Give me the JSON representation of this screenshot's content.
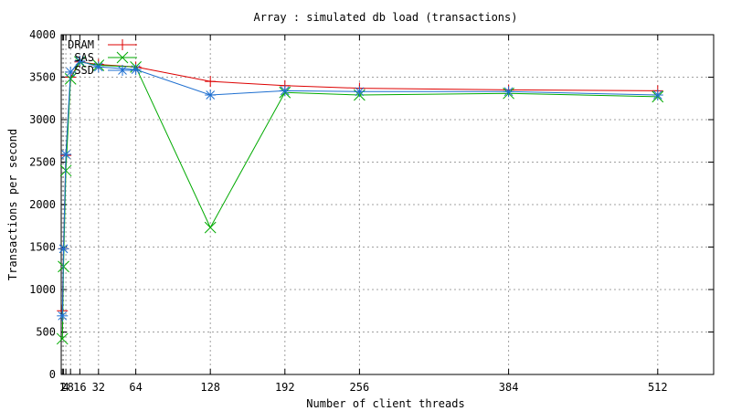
{
  "chart_data": {
    "type": "line",
    "title": "Array : simulated db load (transactions)",
    "xlabel": "Number of client threads",
    "ylabel": "Transactions per second",
    "xlim": [
      0,
      560
    ],
    "ylim": [
      0,
      4000
    ],
    "xticks": [
      1,
      2,
      4,
      8,
      16,
      32,
      64,
      128,
      192,
      256,
      384,
      512
    ],
    "xtick_labels": [
      "1",
      "2",
      "4",
      "8",
      "16",
      "32",
      "64",
      "128",
      "192",
      "256",
      "384",
      "512"
    ],
    "yticks": [
      0,
      500,
      1000,
      1500,
      2000,
      2500,
      3000,
      3500,
      4000
    ],
    "grid": true,
    "legend": "top-left",
    "series": [
      {
        "name": "DRAM",
        "color": "#dd0000",
        "marker": "plus",
        "x": [
          1,
          2,
          4,
          8,
          16,
          32,
          64,
          128,
          192,
          256,
          384,
          512
        ],
        "y": [
          750,
          1480,
          2580,
          3500,
          3680,
          3650,
          3620,
          3450,
          3400,
          3370,
          3350,
          3340
        ]
      },
      {
        "name": "SAS",
        "color": "#00aa00",
        "marker": "x",
        "x": [
          1,
          2,
          4,
          8,
          16,
          32,
          64,
          128,
          192,
          256,
          384,
          512
        ],
        "y": [
          420,
          1270,
          2400,
          3480,
          3680,
          3640,
          3620,
          1730,
          3320,
          3290,
          3310,
          3270
        ]
      },
      {
        "name": "SSD",
        "color": "#1e6fd0",
        "marker": "star",
        "x": [
          1,
          2,
          4,
          8,
          16,
          32,
          64,
          128,
          192,
          256,
          384,
          512
        ],
        "y": [
          690,
          1480,
          2590,
          3560,
          3690,
          3620,
          3590,
          3290,
          3340,
          3330,
          3330,
          3290
        ]
      }
    ]
  }
}
